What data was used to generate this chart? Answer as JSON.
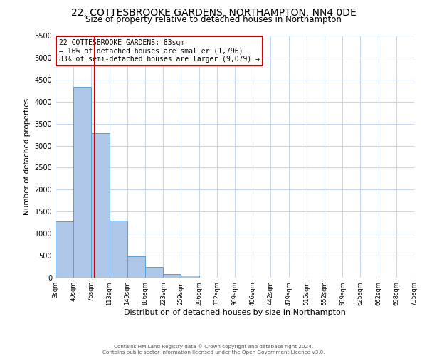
{
  "title": "22, COTTESBROOKE GARDENS, NORTHAMPTON, NN4 0DE",
  "subtitle": "Size of property relative to detached houses in Northampton",
  "xlabel": "Distribution of detached houses by size in Northampton",
  "ylabel": "Number of detached properties",
  "bin_edges": [
    3,
    40,
    76,
    113,
    149,
    186,
    223,
    259,
    296,
    332,
    369,
    406,
    442,
    479,
    515,
    552,
    589,
    625,
    662,
    698,
    735
  ],
  "bin_labels": [
    "3sqm",
    "40sqm",
    "76sqm",
    "113sqm",
    "149sqm",
    "186sqm",
    "223sqm",
    "259sqm",
    "296sqm",
    "332sqm",
    "369sqm",
    "406sqm",
    "442sqm",
    "479sqm",
    "515sqm",
    "552sqm",
    "589sqm",
    "625sqm",
    "662sqm",
    "698sqm",
    "735sqm"
  ],
  "counts": [
    1270,
    4340,
    3290,
    1290,
    480,
    240,
    80,
    50,
    0,
    0,
    0,
    0,
    0,
    0,
    0,
    0,
    0,
    0,
    0,
    0
  ],
  "bar_color": "#aec6e8",
  "bar_edge_color": "#5a9fd4",
  "vline_x": 83,
  "vline_color": "#cc0000",
  "ylim": [
    0,
    5500
  ],
  "yticks": [
    0,
    500,
    1000,
    1500,
    2000,
    2500,
    3000,
    3500,
    4000,
    4500,
    5000,
    5500
  ],
  "annotation_title": "22 COTTESBROOKE GARDENS: 83sqm",
  "annotation_line1": "← 16% of detached houses are smaller (1,796)",
  "annotation_line2": "83% of semi-detached houses are larger (9,079) →",
  "annotation_box_color": "#ffffff",
  "annotation_box_edge_color": "#cc0000",
  "footer_line1": "Contains HM Land Registry data © Crown copyright and database right 2024.",
  "footer_line2": "Contains public sector information licensed under the Open Government Licence v3.0.",
  "bg_color": "#ffffff",
  "grid_color": "#c8d8e8",
  "title_fontsize": 10,
  "subtitle_fontsize": 8.5,
  "ylabel_fontsize": 7.5,
  "xlabel_fontsize": 8,
  "ytick_fontsize": 7,
  "xtick_fontsize": 6
}
